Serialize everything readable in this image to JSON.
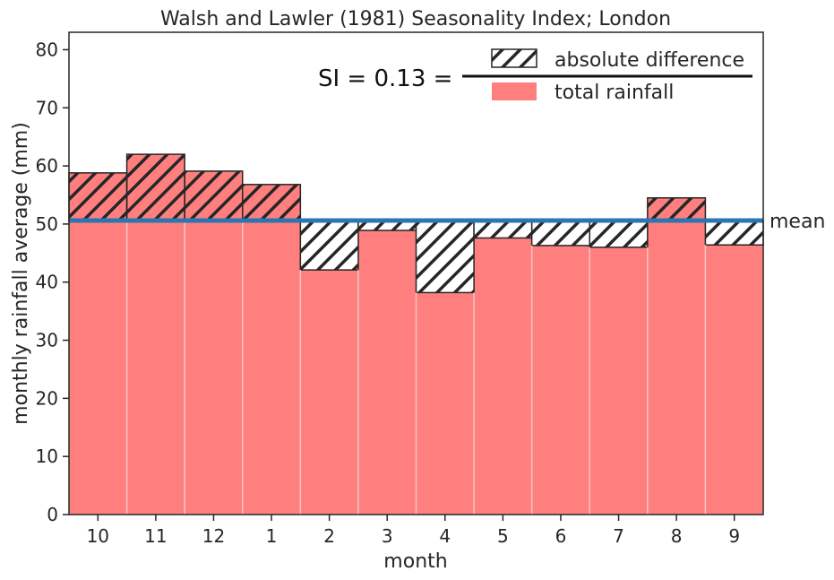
{
  "chart_data": {
    "type": "bar",
    "title": "Walsh and Lawler (1981) Seasonality Index; London",
    "xlabel": "month",
    "ylabel": "monthly rainfall average (mm)",
    "categories": [
      "10",
      "11",
      "12",
      "1",
      "2",
      "3",
      "4",
      "5",
      "6",
      "7",
      "8",
      "9"
    ],
    "ylim": [
      0,
      83
    ],
    "yticks": [
      "0",
      "10",
      "20",
      "30",
      "40",
      "50",
      "60",
      "70",
      "80"
    ],
    "series": [
      {
        "name": "total rainfall",
        "values": [
          58.8,
          62.0,
          59.1,
          56.8,
          42.1,
          48.9,
          38.2,
          47.6,
          46.3,
          46.0,
          54.5,
          46.4
        ]
      }
    ],
    "mean": 50.6,
    "mean_label": "mean",
    "difference_label": "absolute difference",
    "si_text": "SI = 0.13 =",
    "legend_position": "top-right",
    "grid": false,
    "colors": {
      "rainfall": "#ff7f7f",
      "mean_line": "#2b75b0",
      "hatch": "#262626",
      "bar_separator": "#f7c4c4"
    }
  }
}
